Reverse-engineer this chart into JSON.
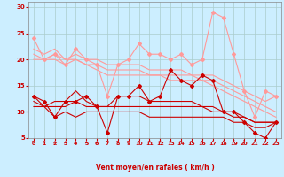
{
  "xlabel": "Vent moyen/en rafales ( km/h )",
  "bg_color": "#cceeff",
  "grid_color": "#aacccc",
  "x_ticks": [
    0,
    1,
    2,
    3,
    4,
    5,
    6,
    7,
    8,
    9,
    10,
    11,
    12,
    13,
    14,
    15,
    16,
    17,
    18,
    19,
    20,
    21,
    22,
    23
  ],
  "ylim": [
    5,
    31
  ],
  "yticks": [
    5,
    10,
    15,
    20,
    25,
    30
  ],
  "lines": [
    {
      "x": [
        0,
        1,
        2,
        3,
        4,
        5,
        6,
        7,
        8,
        9,
        10,
        11,
        12,
        13,
        14,
        15,
        16,
        17,
        18,
        19,
        20,
        21,
        22,
        23
      ],
      "y": [
        24,
        20,
        21,
        19,
        22,
        20,
        19,
        13,
        19,
        20,
        23,
        21,
        21,
        20,
        21,
        19,
        20,
        29,
        28,
        21,
        14,
        9,
        14,
        13
      ],
      "color": "#ff9999",
      "lw": 0.8,
      "marker": "D",
      "ms": 2.0
    },
    {
      "x": [
        0,
        1,
        2,
        3,
        4,
        5,
        6,
        7,
        8,
        9,
        10,
        11,
        12,
        13,
        14,
        15,
        16,
        17,
        18,
        19,
        20,
        21,
        22,
        23
      ],
      "y": [
        22,
        21,
        22,
        20,
        21,
        20,
        20,
        19,
        19,
        19,
        19,
        18,
        18,
        18,
        18,
        17,
        17,
        17,
        16,
        15,
        14,
        13,
        12,
        13
      ],
      "color": "#ff9999",
      "lw": 0.8,
      "marker": null,
      "ms": 0
    },
    {
      "x": [
        0,
        1,
        2,
        3,
        4,
        5,
        6,
        7,
        8,
        9,
        10,
        11,
        12,
        13,
        14,
        15,
        16,
        17,
        18,
        19,
        20,
        21,
        22,
        23
      ],
      "y": [
        21,
        20,
        21,
        20,
        20,
        19,
        19,
        18,
        18,
        18,
        18,
        17,
        17,
        17,
        17,
        17,
        16,
        16,
        15,
        14,
        13,
        12,
        11,
        10
      ],
      "color": "#ff9999",
      "lw": 0.8,
      "marker": null,
      "ms": 0
    },
    {
      "x": [
        0,
        1,
        2,
        3,
        4,
        5,
        6,
        7,
        8,
        9,
        10,
        11,
        12,
        13,
        14,
        15,
        16,
        17,
        18,
        19,
        20,
        21,
        22,
        23
      ],
      "y": [
        20,
        20,
        20,
        19,
        20,
        19,
        18,
        17,
        17,
        17,
        17,
        17,
        17,
        16,
        16,
        16,
        16,
        15,
        14,
        13,
        12,
        11,
        10,
        9
      ],
      "color": "#ff9999",
      "lw": 0.8,
      "marker": null,
      "ms": 0
    },
    {
      "x": [
        0,
        1,
        2,
        3,
        4,
        5,
        6,
        7,
        8,
        9,
        10,
        11,
        12,
        13,
        14,
        15,
        16,
        17,
        18,
        19,
        20,
        21,
        22,
        23
      ],
      "y": [
        13,
        12,
        9,
        12,
        12,
        13,
        11,
        6,
        13,
        13,
        15,
        12,
        13,
        18,
        16,
        15,
        17,
        16,
        10,
        10,
        8,
        6,
        5,
        8
      ],
      "color": "#cc0000",
      "lw": 0.8,
      "marker": "D",
      "ms": 2.0
    },
    {
      "x": [
        0,
        1,
        2,
        3,
        4,
        5,
        6,
        7,
        8,
        9,
        10,
        11,
        12,
        13,
        14,
        15,
        16,
        17,
        18,
        19,
        20,
        21,
        22,
        23
      ],
      "y": [
        13,
        11,
        12,
        12,
        14,
        12,
        11,
        11,
        13,
        13,
        13,
        12,
        12,
        12,
        12,
        12,
        11,
        11,
        10,
        10,
        9,
        8,
        8,
        8
      ],
      "color": "#cc0000",
      "lw": 0.8,
      "marker": null,
      "ms": 0
    },
    {
      "x": [
        0,
        1,
        2,
        3,
        4,
        5,
        6,
        7,
        8,
        9,
        10,
        11,
        12,
        13,
        14,
        15,
        16,
        17,
        18,
        19,
        20,
        21,
        22,
        23
      ],
      "y": [
        12,
        11,
        11,
        11,
        12,
        11,
        11,
        11,
        11,
        11,
        11,
        11,
        11,
        11,
        11,
        11,
        11,
        10,
        10,
        9,
        9,
        8,
        8,
        8
      ],
      "color": "#cc0000",
      "lw": 0.8,
      "marker": null,
      "ms": 0
    },
    {
      "x": [
        0,
        1,
        2,
        3,
        4,
        5,
        6,
        7,
        8,
        9,
        10,
        11,
        12,
        13,
        14,
        15,
        16,
        17,
        18,
        19,
        20,
        21,
        22,
        23
      ],
      "y": [
        11,
        11,
        9,
        10,
        9,
        10,
        10,
        10,
        10,
        10,
        10,
        9,
        9,
        9,
        9,
        9,
        9,
        9,
        9,
        8,
        8,
        7,
        7,
        8
      ],
      "color": "#cc0000",
      "lw": 0.8,
      "marker": null,
      "ms": 0
    }
  ],
  "arrow_color": "#cc0000",
  "arrow_angles": [
    225,
    210,
    180,
    180,
    180,
    180,
    180,
    225,
    270,
    270,
    270,
    270,
    270,
    270,
    270,
    270,
    270,
    315,
    315,
    315,
    45,
    45,
    315,
    315
  ]
}
